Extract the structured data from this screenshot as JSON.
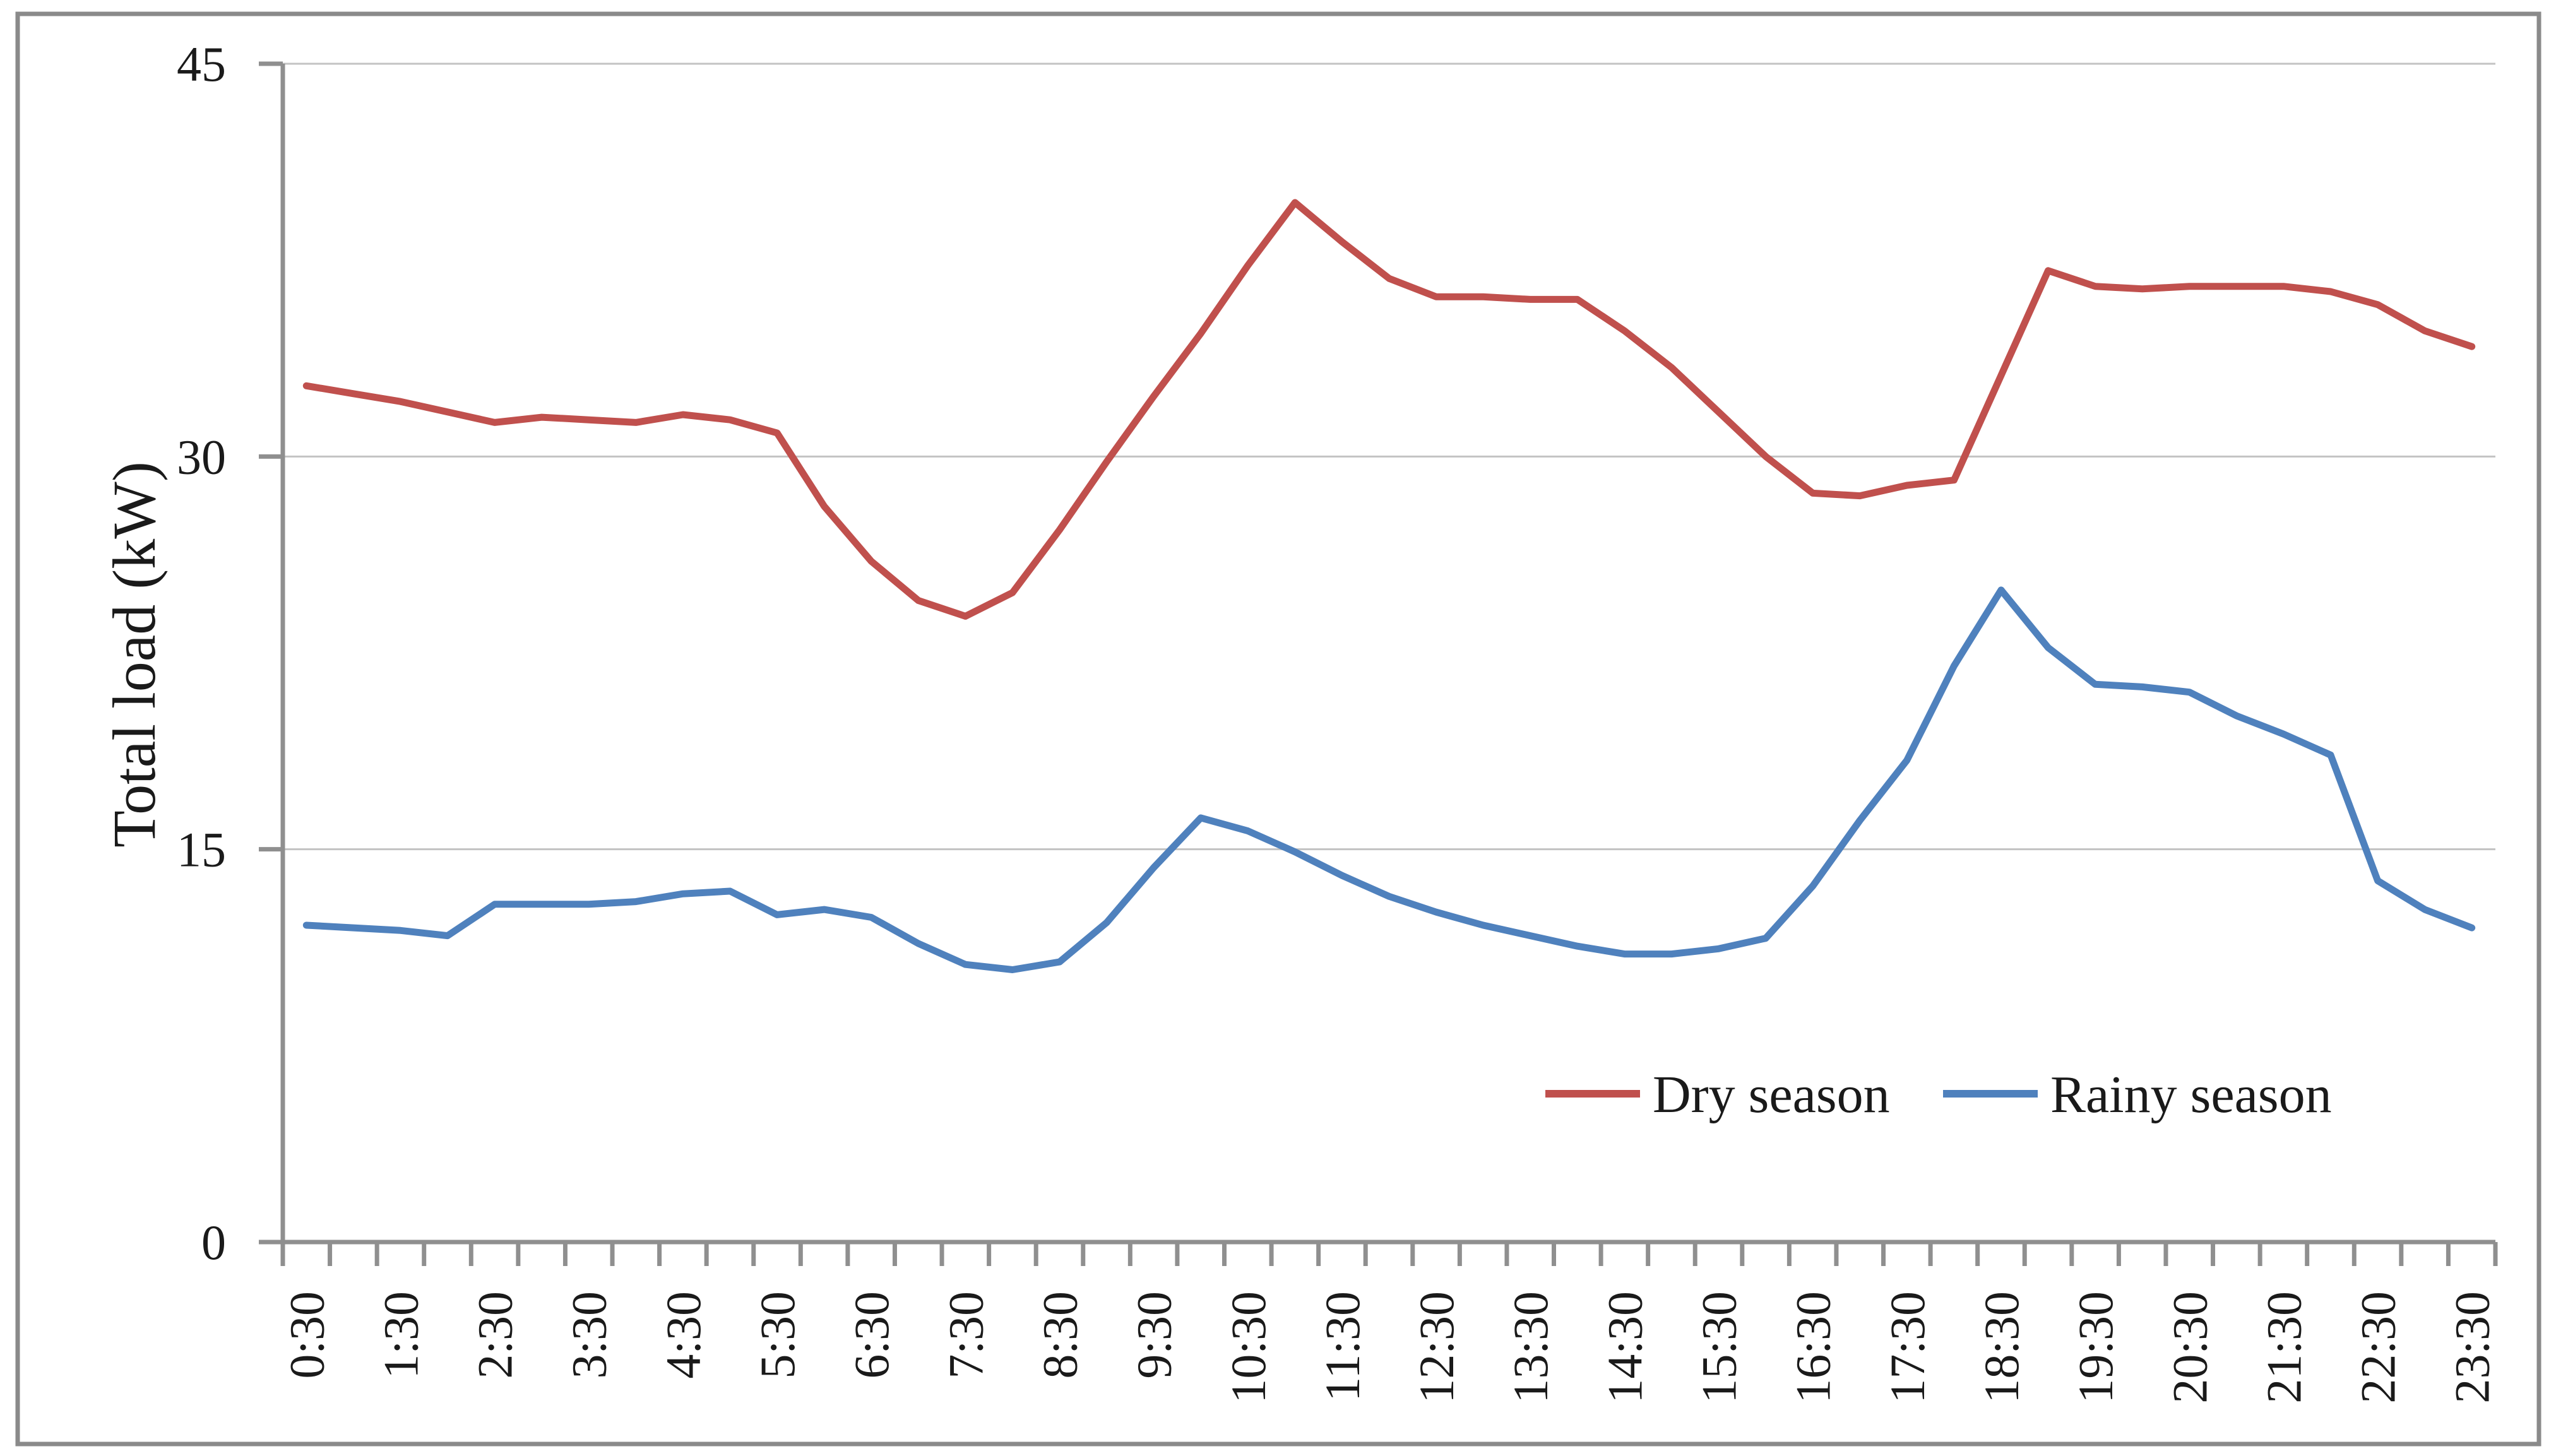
{
  "chart_data": {
    "type": "line",
    "title": "",
    "xlabel": "",
    "ylabel": "Total load (kW)",
    "ylim": [
      0,
      45
    ],
    "yticks": [
      0,
      15,
      30,
      45
    ],
    "grid": "horizontal-only",
    "x_label_every": 2,
    "x_label_rotation": -90,
    "legend_position": "inside-bottom-right",
    "frame_color": "#8a8a8a",
    "axis_color": "#8f8f8f",
    "gridline_color": "#c3c3c3",
    "categories": [
      "0:30",
      "1:00",
      "1:30",
      "2:00",
      "2:30",
      "3:00",
      "3:30",
      "4:00",
      "4:30",
      "5:00",
      "5:30",
      "6:00",
      "6:30",
      "7:00",
      "7:30",
      "8:00",
      "8:30",
      "9:00",
      "9:30",
      "10:00",
      "10:30",
      "11:00",
      "11:30",
      "12:00",
      "12:30",
      "13:00",
      "13:30",
      "14:00",
      "14:30",
      "15:00",
      "15:30",
      "16:00",
      "16:30",
      "17:00",
      "17:30",
      "18:00",
      "18:30",
      "19:00",
      "19:30",
      "20:00",
      "20:30",
      "21:00",
      "21:30",
      "22:00",
      "22:30",
      "23:00",
      "23:30"
    ],
    "series": [
      {
        "name": "Dry season",
        "color": "#c0504d",
        "values": [
          32.7,
          32.4,
          32.1,
          31.7,
          31.3,
          31.5,
          31.4,
          31.3,
          31.6,
          31.4,
          30.9,
          28.1,
          26.0,
          24.5,
          23.9,
          24.8,
          27.2,
          29.8,
          32.3,
          34.7,
          37.3,
          39.7,
          38.2,
          36.8,
          36.1,
          36.1,
          36.0,
          36.0,
          34.8,
          33.4,
          31.7,
          30.0,
          28.6,
          28.5,
          28.9,
          29.1,
          33.1,
          37.1,
          36.5,
          36.4,
          36.5,
          36.5,
          36.5,
          36.3,
          35.8,
          34.8,
          34.2
        ]
      },
      {
        "name": "Rainy season",
        "color": "#4f81bd",
        "values": [
          12.1,
          12.0,
          11.9,
          11.7,
          12.9,
          12.9,
          12.9,
          13.0,
          13.3,
          13.4,
          12.5,
          12.7,
          12.4,
          11.4,
          10.6,
          10.4,
          10.7,
          12.2,
          14.3,
          16.2,
          15.7,
          14.9,
          14.0,
          13.2,
          12.6,
          12.1,
          11.7,
          11.3,
          11.0,
          11.0,
          11.2,
          11.6,
          13.6,
          16.1,
          18.4,
          22.0,
          24.9,
          22.7,
          21.3,
          21.2,
          21.0,
          20.1,
          19.4,
          18.6,
          13.8,
          12.7,
          12.0
        ]
      }
    ]
  }
}
